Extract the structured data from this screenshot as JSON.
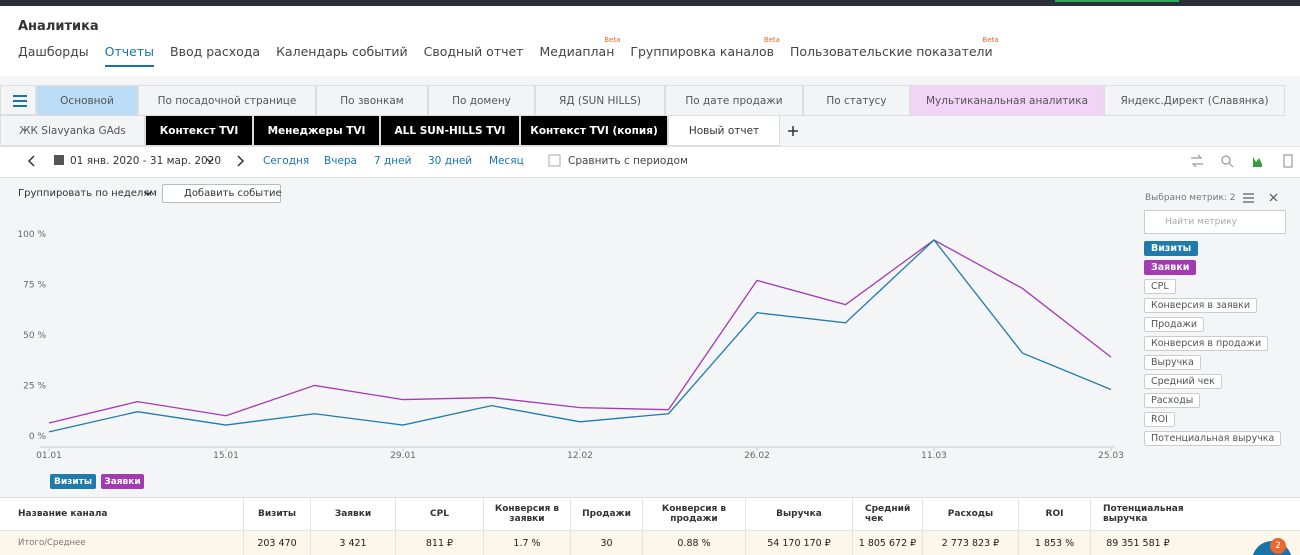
{
  "header": {
    "title": "Аналитика"
  },
  "nav": [
    {
      "label": "Дашборды"
    },
    {
      "label": "Отчеты",
      "active": true
    },
    {
      "label": "Ввод расхода"
    },
    {
      "label": "Календарь событий"
    },
    {
      "label": "Сводный отчет"
    },
    {
      "label": "Медиаплан",
      "badge": "Beta"
    },
    {
      "label": "Группировка каналов",
      "badge": "Beta"
    },
    {
      "label": "Пользовательские показатели",
      "badge": "Beta"
    }
  ],
  "report_tabs": [
    [
      "Основной",
      "По посадочной странице",
      "По звонкам",
      "По домену",
      "ЯД (SUN HILLS)",
      "По дате продажи",
      "По статусу",
      "Мультиканальная аналитика",
      "Яндекс.Директ (Славянка)"
    ],
    [
      "ЖК Slavyanka GAds",
      "Контекст TVI",
      "Менеджеры TVI",
      "ALL SUN-HILLS TVI",
      "Контекст TVI (копия)",
      "Новый отчет"
    ]
  ],
  "date_bar": {
    "range": "01 янв. 2020 - 31 мар. 2020",
    "presets": [
      "Сегодня",
      "Вчера",
      "7 дней",
      "30 дней",
      "Месяц"
    ],
    "compare": "Сравнить с периодом"
  },
  "toolbar": {
    "group": "Группировать по неделям",
    "add_event": "Добавить событие"
  },
  "metrics_panel": {
    "selected": "Выбрано метрик: 2",
    "search_placeholder": "Найти метрику",
    "metrics": [
      "Визиты",
      "Заявки",
      "CPL",
      "Конверсия в заявки",
      "Продажи",
      "Конверсия в продажи",
      "Выручка",
      "Средний чек",
      "Расходы",
      "ROI",
      "Потенциальная выручка"
    ]
  },
  "chart_data": {
    "type": "line",
    "categories": [
      "01.01",
      null,
      "15.01",
      null,
      "29.01",
      null,
      "12.02",
      null,
      "26.02",
      null,
      "11.03",
      null,
      "25.03"
    ],
    "series": [
      {
        "name": "Визиты",
        "color": "#1f7bab",
        "values": [
          5,
          15,
          8.4,
          14,
          8.4,
          18,
          10,
          14,
          64,
          59,
          100,
          44,
          26
        ]
      },
      {
        "name": "Заявки",
        "color": "#a23ab0",
        "values": [
          9.4,
          20,
          13,
          28,
          21,
          22,
          17,
          16,
          80,
          68,
          100,
          76,
          42
        ]
      }
    ],
    "ylim": [
      0,
      100
    ],
    "yticks": [
      {
        "value": 0,
        "label": "0 %"
      },
      {
        "value": 25,
        "label": "25 %"
      },
      {
        "value": 50,
        "label": "50 %"
      },
      {
        "value": 75,
        "label": "75 %"
      },
      {
        "value": 100,
        "label": "100 %"
      }
    ],
    "grid": false
  },
  "table": {
    "columns": [
      "Название канала",
      "Визиты",
      "Заявки",
      "CPL",
      "Конверсия в заявки",
      "Продажи",
      "Конверсия в продажи",
      "Выручка",
      "Средний чек",
      "Расходы",
      "ROI",
      "Потенциальная выручка"
    ],
    "rows": [
      [
        "Итого/Среднее",
        "203 470",
        "3 421",
        "811 ₽",
        "1.7 %",
        "30",
        "0.88 %",
        "54 170 170 ₽",
        "1 805 672 ₽",
        "2 773 823 ₽",
        "1 853 %",
        "89 351 581 ₽"
      ]
    ]
  },
  "chat_badge": "2"
}
